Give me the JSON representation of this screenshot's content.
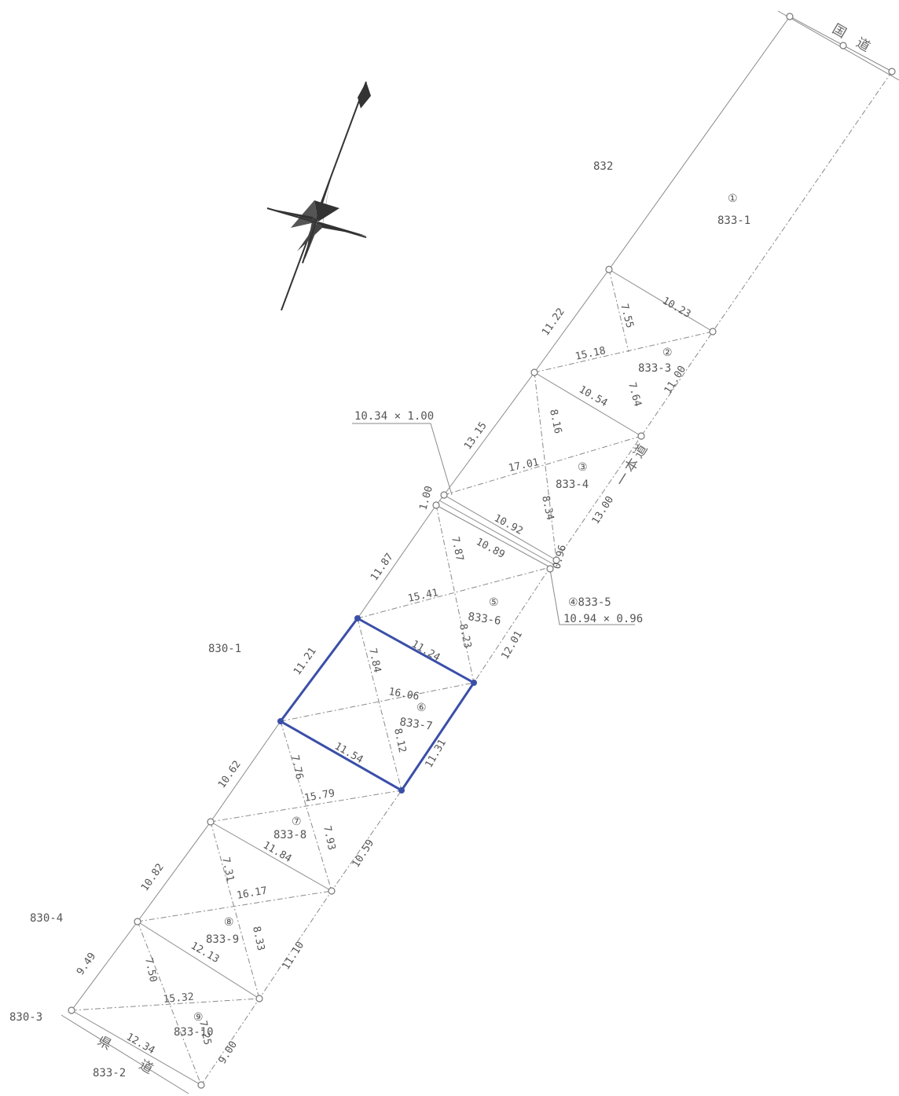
{
  "colors": {
    "line": "#8a8a8a",
    "highlight": "#3a4fa8",
    "text": "#555555"
  },
  "roads": {
    "north": "国道",
    "east": "一本道",
    "south": "県道"
  },
  "parcels": [
    {
      "num": "①",
      "id": "833-1"
    },
    {
      "num": "②",
      "id": "833-3"
    },
    {
      "num": "③",
      "id": "833-4"
    },
    {
      "num": "④",
      "id": "833-5"
    },
    {
      "num": "⑤",
      "id": "833-6"
    },
    {
      "num": "⑥",
      "id": "833-7"
    },
    {
      "num": "⑦",
      "id": "833-8"
    },
    {
      "num": "⑧",
      "id": "833-9"
    },
    {
      "num": "⑨",
      "id": "833-10"
    }
  ],
  "neighbors": {
    "n832": "832",
    "n830_1": "830-1",
    "n830_4": "830-4",
    "n830_3": "830-3",
    "n833_2": "833-2"
  },
  "callouts": {
    "top": "10.34 × 1.00",
    "bottom": "10.94 × 0.96",
    "bottom_parcel": "④833-5"
  },
  "measurements": {
    "m10_23": "10.23",
    "m7_55": "7.55",
    "m11_22": "11.22",
    "m15_18": "15.18",
    "m7_64": "7.64",
    "m11_00": "11.00",
    "m10_54": "10.54",
    "m8_16": "8.16",
    "m13_15": "13.15",
    "m17_01": "17.01",
    "m8_34": "8.34",
    "m13_00": "13.00",
    "m1_00": "1.00",
    "m10_92": "10.92",
    "m10_89": "10.89",
    "m7_87": "7.87",
    "m0_96": "0.96",
    "m11_87": "11.87",
    "m15_41": "15.41",
    "m8_23": "8.23",
    "m12_01": "12.01",
    "m11_24": "11.24",
    "m7_84": "7.84",
    "m11_21": "11.21",
    "m16_06": "16.06",
    "m8_12": "8.12",
    "m11_54": "11.54",
    "m11_31": "11.31",
    "m10_62": "10.62",
    "m7_76": "7.76",
    "m15_79": "15.79",
    "m7_93": "7.93",
    "m11_84": "11.84",
    "m10_59": "10.59",
    "m10_82": "10.82",
    "m7_31": "7.31",
    "m16_17": "16.17",
    "m8_33": "8.33",
    "m12_13": "12.13",
    "m11_10": "11.10",
    "m9_49": "9.49",
    "m7_50": "7.50",
    "m15_32": "15.32",
    "m7_25": "7.25",
    "m12_34": "12.34",
    "m9_00": "9.00"
  }
}
